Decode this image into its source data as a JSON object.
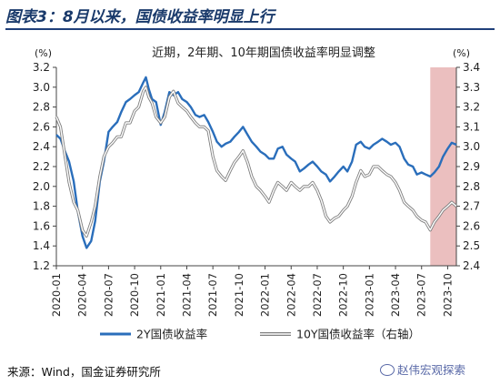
{
  "figure": {
    "title": "图表3：8月以来，国债收益率明显上行",
    "source": "来源：Wind，国金证券研究所",
    "watermark": "赵伟宏观探索"
  },
  "chart_data": {
    "type": "line",
    "title": "近期，2年期、10年期国债收益率明显调整",
    "y_left": {
      "unit": "(%)",
      "lim": [
        1.2,
        3.2
      ],
      "ticks": [
        "1.2",
        "1.4",
        "1.6",
        "1.8",
        "2.0",
        "2.2",
        "2.4",
        "2.6",
        "2.8",
        "3.0",
        "3.2"
      ]
    },
    "y_right": {
      "unit": "(%)",
      "lim": [
        2.4,
        3.4
      ],
      "ticks": [
        "2.4",
        "2.5",
        "2.6",
        "2.7",
        "2.8",
        "2.9",
        "3.0",
        "3.1",
        "3.2",
        "3.3",
        "3.4"
      ]
    },
    "x_ticks": [
      "2020-01",
      "2020-04",
      "2020-07",
      "2020-10",
      "2021-01",
      "2021-04",
      "2021-07",
      "2021-10",
      "2022-01",
      "2022-04",
      "2022-07",
      "2022-10",
      "2023-01",
      "2023-04",
      "2023-07",
      "2023-10"
    ],
    "x_range": [
      "2020-01",
      "2023-11"
    ],
    "shaded_region": {
      "from": "2023-08",
      "to": "2023-11",
      "color": "#e8b4b4"
    },
    "series": [
      {
        "name": "2Y国债收益率",
        "axis": "left",
        "color": "#2a6ebb",
        "x": [
          "2020-01",
          "2020-01-15",
          "2020-02",
          "2020-02-15",
          "2020-03",
          "2020-03-15",
          "2020-04",
          "2020-04-15",
          "2020-05",
          "2020-05-15",
          "2020-06",
          "2020-06-15",
          "2020-07",
          "2020-07-15",
          "2020-08",
          "2020-08-15",
          "2020-09",
          "2020-09-15",
          "2020-10",
          "2020-10-15",
          "2020-11",
          "2020-11-10",
          "2020-11-20",
          "2020-12",
          "2020-12-15",
          "2021-01",
          "2021-01-15",
          "2021-02",
          "2021-02-15",
          "2021-03",
          "2021-03-15",
          "2021-04",
          "2021-04-15",
          "2021-05",
          "2021-05-15",
          "2021-06",
          "2021-06-15",
          "2021-07",
          "2021-07-15",
          "2021-08",
          "2021-08-15",
          "2021-09",
          "2021-09-15",
          "2021-10",
          "2021-10-15",
          "2021-11",
          "2021-11-15",
          "2021-12",
          "2021-12-15",
          "2022-01",
          "2022-01-15",
          "2022-02",
          "2022-02-15",
          "2022-03",
          "2022-03-15",
          "2022-04",
          "2022-04-15",
          "2022-05",
          "2022-05-15",
          "2022-06",
          "2022-06-15",
          "2022-07",
          "2022-07-15",
          "2022-08",
          "2022-08-15",
          "2022-09",
          "2022-09-15",
          "2022-10",
          "2022-10-15",
          "2022-11",
          "2022-11-15",
          "2022-12",
          "2022-12-15",
          "2023-01",
          "2023-01-15",
          "2023-02",
          "2023-02-15",
          "2023-03",
          "2023-03-15",
          "2023-04",
          "2023-04-15",
          "2023-05",
          "2023-05-15",
          "2023-06",
          "2023-06-15",
          "2023-07",
          "2023-07-15",
          "2023-08",
          "2023-08-15",
          "2023-09",
          "2023-09-15",
          "2023-10",
          "2023-10-15",
          "2023-11"
        ],
        "values": [
          2.52,
          2.48,
          2.35,
          2.25,
          2.05,
          1.75,
          1.5,
          1.38,
          1.45,
          1.65,
          2.05,
          2.25,
          2.55,
          2.6,
          2.65,
          2.75,
          2.85,
          2.88,
          2.92,
          2.95,
          3.05,
          3.1,
          2.98,
          2.88,
          2.85,
          2.62,
          2.75,
          2.95,
          2.92,
          2.95,
          2.88,
          2.85,
          2.8,
          2.72,
          2.7,
          2.72,
          2.65,
          2.55,
          2.45,
          2.4,
          2.43,
          2.45,
          2.5,
          2.55,
          2.6,
          2.52,
          2.45,
          2.4,
          2.35,
          2.32,
          2.28,
          2.28,
          2.38,
          2.4,
          2.32,
          2.28,
          2.25,
          2.15,
          2.18,
          2.22,
          2.25,
          2.2,
          2.15,
          2.12,
          2.05,
          2.1,
          2.15,
          2.2,
          2.15,
          2.25,
          2.42,
          2.45,
          2.4,
          2.38,
          2.42,
          2.45,
          2.48,
          2.45,
          2.42,
          2.44,
          2.4,
          2.28,
          2.22,
          2.2,
          2.12,
          2.14,
          2.12,
          2.1,
          2.14,
          2.2,
          2.3,
          2.38,
          2.44,
          2.42
        ]
      },
      {
        "name": "10Y国债收益率（右轴）",
        "axis": "right",
        "color": "#a8a8a8",
        "x": [
          "2020-01",
          "2020-01-15",
          "2020-02",
          "2020-02-15",
          "2020-03",
          "2020-03-15",
          "2020-04",
          "2020-04-15",
          "2020-05",
          "2020-05-15",
          "2020-06",
          "2020-06-15",
          "2020-07",
          "2020-07-15",
          "2020-08",
          "2020-08-15",
          "2020-09",
          "2020-09-15",
          "2020-10",
          "2020-10-15",
          "2020-11",
          "2020-11-10",
          "2020-11-20",
          "2020-12",
          "2020-12-15",
          "2021-01",
          "2021-01-15",
          "2021-02",
          "2021-02-15",
          "2021-03",
          "2021-03-15",
          "2021-04",
          "2021-04-15",
          "2021-05",
          "2021-05-15",
          "2021-06",
          "2021-06-15",
          "2021-07",
          "2021-07-15",
          "2021-08",
          "2021-08-15",
          "2021-09",
          "2021-09-15",
          "2021-10",
          "2021-10-15",
          "2021-11",
          "2021-11-15",
          "2021-12",
          "2021-12-15",
          "2022-01",
          "2022-01-15",
          "2022-02",
          "2022-02-15",
          "2022-03",
          "2022-03-15",
          "2022-04",
          "2022-04-15",
          "2022-05",
          "2022-05-15",
          "2022-06",
          "2022-06-15",
          "2022-07",
          "2022-07-15",
          "2022-08",
          "2022-08-15",
          "2022-09",
          "2022-09-15",
          "2022-10",
          "2022-10-15",
          "2022-11",
          "2022-11-15",
          "2022-12",
          "2022-12-15",
          "2023-01",
          "2023-01-15",
          "2023-02",
          "2023-02-15",
          "2023-03",
          "2023-03-15",
          "2023-04",
          "2023-04-15",
          "2023-05",
          "2023-05-15",
          "2023-06",
          "2023-06-15",
          "2023-07",
          "2023-07-15",
          "2023-08",
          "2023-08-15",
          "2023-09",
          "2023-09-15",
          "2023-10",
          "2023-10-15",
          "2023-11"
        ],
        "values": [
          3.15,
          3.1,
          2.95,
          2.82,
          2.72,
          2.68,
          2.58,
          2.55,
          2.62,
          2.7,
          2.85,
          2.95,
          3.0,
          3.02,
          3.05,
          3.05,
          3.12,
          3.12,
          3.18,
          3.2,
          3.28,
          3.3,
          3.25,
          3.22,
          3.15,
          3.12,
          3.15,
          3.25,
          3.28,
          3.22,
          3.2,
          3.18,
          3.15,
          3.12,
          3.1,
          3.1,
          3.08,
          2.95,
          2.88,
          2.85,
          2.83,
          2.88,
          2.92,
          2.95,
          2.98,
          2.92,
          2.85,
          2.8,
          2.78,
          2.75,
          2.72,
          2.78,
          2.82,
          2.8,
          2.78,
          2.82,
          2.8,
          2.78,
          2.8,
          2.8,
          2.82,
          2.78,
          2.73,
          2.65,
          2.62,
          2.64,
          2.65,
          2.68,
          2.7,
          2.75,
          2.82,
          2.88,
          2.85,
          2.86,
          2.9,
          2.9,
          2.88,
          2.86,
          2.85,
          2.82,
          2.78,
          2.72,
          2.7,
          2.68,
          2.65,
          2.63,
          2.62,
          2.58,
          2.62,
          2.65,
          2.68,
          2.7,
          2.72,
          2.7
        ]
      }
    ]
  }
}
